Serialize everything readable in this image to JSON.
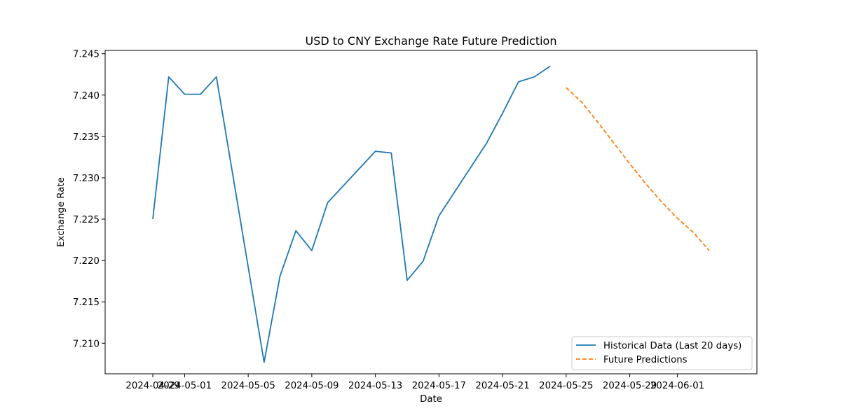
{
  "chart_data": {
    "type": "line",
    "title": "USD to CNY Exchange Rate Future Prediction",
    "xlabel": "Date",
    "ylabel": "Exchange Rate",
    "xlim": [
      "2024-04-26",
      "2024-06-06"
    ],
    "ylim": [
      7.2063,
      7.2454
    ],
    "x_ticks": [
      "2024-04-29",
      "2024-05-01",
      "2024-05-05",
      "2024-05-09",
      "2024-05-13",
      "2024-05-17",
      "2024-05-21",
      "2024-05-25",
      "2024-05-29",
      "2024-06-01"
    ],
    "y_ticks": [
      "7.210",
      "7.215",
      "7.220",
      "7.225",
      "7.230",
      "7.235",
      "7.240",
      "7.245"
    ],
    "grid": false,
    "legend_position": "lower-right",
    "series": [
      {
        "name": "Historical Data (Last 20 days)",
        "color": "#1f77b4",
        "style": "solid",
        "points": [
          {
            "x": "2024-04-29",
            "y": 7.225
          },
          {
            "x": "2024-04-30",
            "y": 7.2422
          },
          {
            "x": "2024-05-01",
            "y": 7.2401
          },
          {
            "x": "2024-05-02",
            "y": 7.2401
          },
          {
            "x": "2024-05-03",
            "y": 7.2422
          },
          {
            "x": "2024-05-06",
            "y": 7.2077
          },
          {
            "x": "2024-05-07",
            "y": 7.2181
          },
          {
            "x": "2024-05-08",
            "y": 7.2236
          },
          {
            "x": "2024-05-09",
            "y": 7.2212
          },
          {
            "x": "2024-05-10",
            "y": 7.227
          },
          {
            "x": "2024-05-13",
            "y": 7.2332
          },
          {
            "x": "2024-05-14",
            "y": 7.233
          },
          {
            "x": "2024-05-15",
            "y": 7.2176
          },
          {
            "x": "2024-05-16",
            "y": 7.2199
          },
          {
            "x": "2024-05-17",
            "y": 7.2254
          },
          {
            "x": "2024-05-20",
            "y": 7.2342
          },
          {
            "x": "2024-05-21",
            "y": 7.2378
          },
          {
            "x": "2024-05-22",
            "y": 7.2416
          },
          {
            "x": "2024-05-23",
            "y": 7.2422
          },
          {
            "x": "2024-05-24",
            "y": 7.2435
          }
        ]
      },
      {
        "name": "Future Predictions",
        "color": "#ff7f0e",
        "style": "dashed",
        "points": [
          {
            "x": "2024-05-25",
            "y": 7.2409
          },
          {
            "x": "2024-05-26",
            "y": 7.2391
          },
          {
            "x": "2024-05-27",
            "y": 7.2367
          },
          {
            "x": "2024-05-28",
            "y": 7.2342
          },
          {
            "x": "2024-05-29",
            "y": 7.2317
          },
          {
            "x": "2024-05-30",
            "y": 7.2293
          },
          {
            "x": "2024-05-31",
            "y": 7.2271
          },
          {
            "x": "2024-06-01",
            "y": 7.2251
          },
          {
            "x": "2024-06-02",
            "y": 7.2234
          },
          {
            "x": "2024-06-03",
            "y": 7.2212
          }
        ]
      }
    ]
  }
}
